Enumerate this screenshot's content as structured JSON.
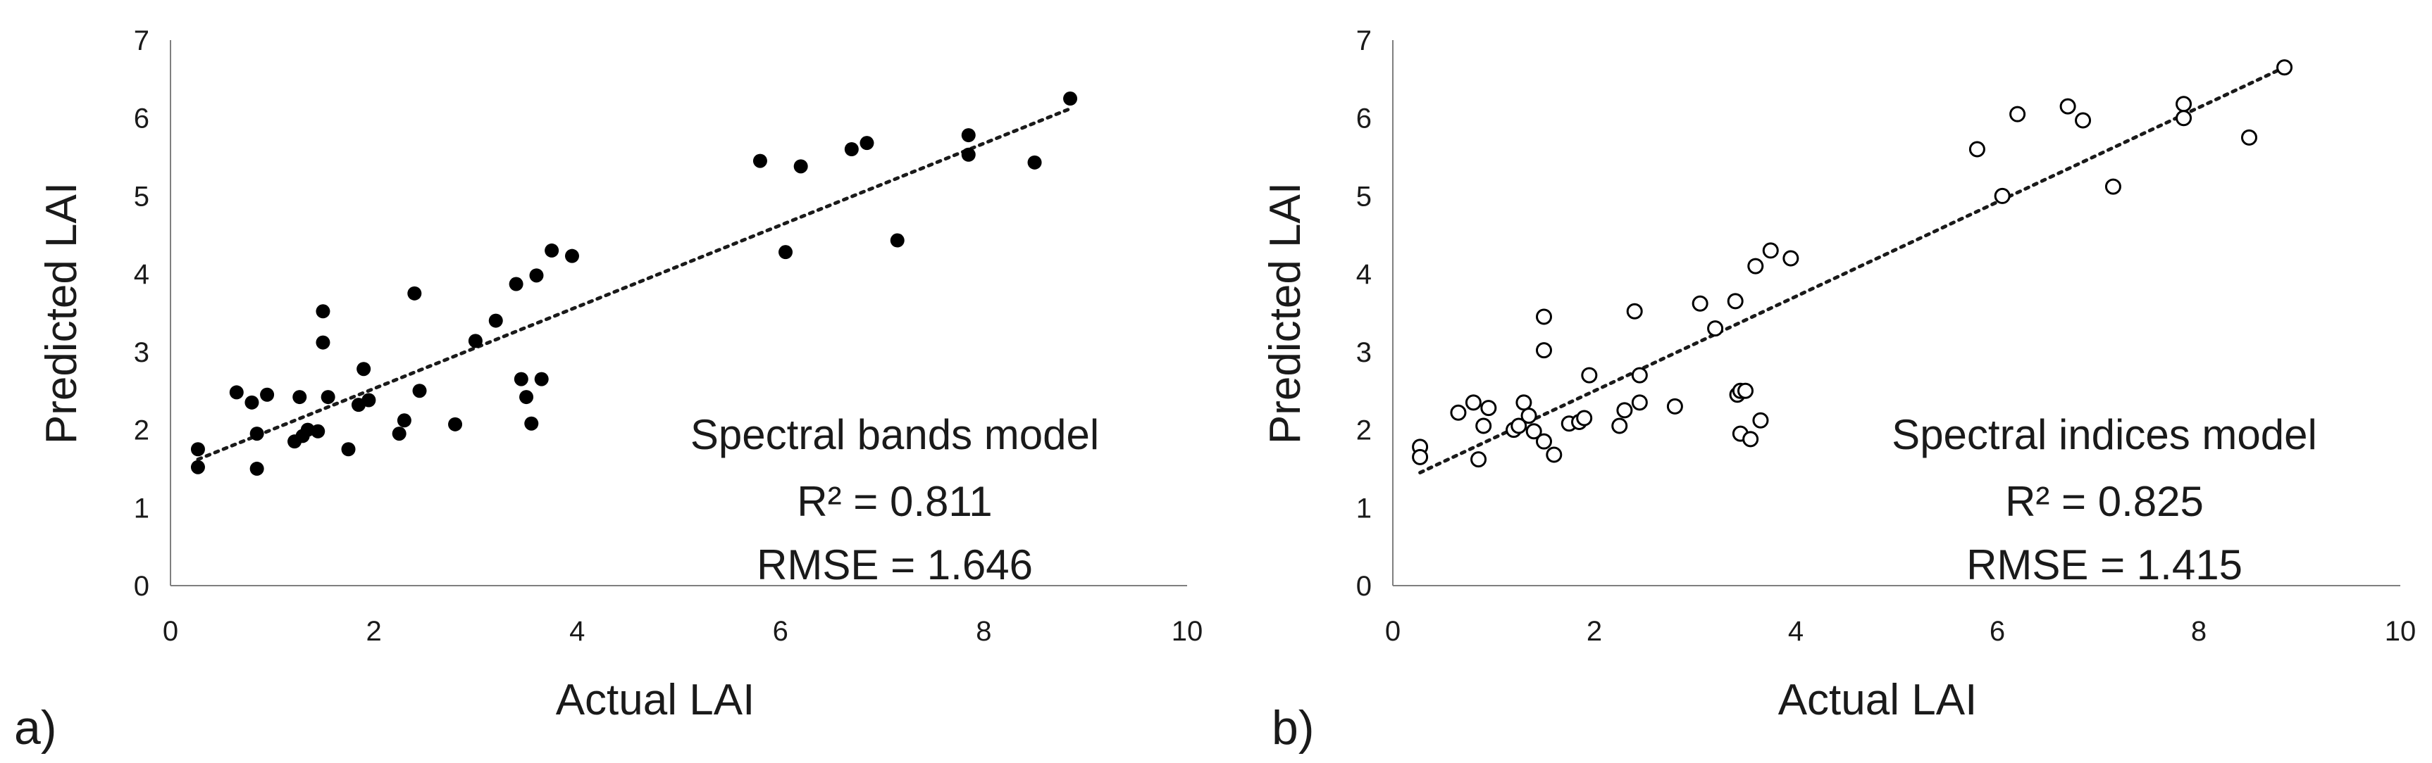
{
  "chart_data": [
    {
      "type": "scatter",
      "panel_label": "a)",
      "xlabel": "Actual LAI",
      "ylabel": "Predicted LAI",
      "xlim": [
        0,
        10
      ],
      "ylim": [
        0,
        7
      ],
      "xticks": [
        "0",
        "2",
        "4",
        "6",
        "8",
        "10"
      ],
      "yticks": [
        "0",
        "1",
        "2",
        "3",
        "4",
        "5",
        "6",
        "7"
      ],
      "grid": false,
      "marker": "filled",
      "annotation": {
        "model": "Spectral bands model",
        "r2": "R² = 0.811",
        "rmse": "RMSE = 1.646"
      },
      "trendline": {
        "x": [
          0.27,
          8.85
        ],
        "y": [
          1.62,
          6.12
        ]
      },
      "points": [
        [
          0.27,
          1.75
        ],
        [
          0.27,
          1.52
        ],
        [
          0.65,
          2.48
        ],
        [
          0.8,
          2.35
        ],
        [
          0.85,
          1.95
        ],
        [
          0.85,
          1.5
        ],
        [
          0.95,
          2.45
        ],
        [
          1.22,
          1.85
        ],
        [
          1.27,
          2.42
        ],
        [
          1.3,
          1.92
        ],
        [
          1.35,
          2.0
        ],
        [
          1.45,
          1.98
        ],
        [
          1.5,
          3.52
        ],
        [
          1.5,
          3.12
        ],
        [
          1.55,
          2.42
        ],
        [
          1.75,
          1.75
        ],
        [
          1.85,
          2.32
        ],
        [
          1.9,
          2.78
        ],
        [
          1.95,
          2.38
        ],
        [
          2.25,
          1.95
        ],
        [
          2.3,
          2.12
        ],
        [
          2.4,
          3.75
        ],
        [
          2.45,
          2.5
        ],
        [
          2.8,
          2.07
        ],
        [
          3.0,
          3.14
        ],
        [
          3.2,
          3.4
        ],
        [
          3.4,
          3.87
        ],
        [
          3.45,
          2.65
        ],
        [
          3.5,
          2.42
        ],
        [
          3.55,
          2.08
        ],
        [
          3.6,
          3.98
        ],
        [
          3.65,
          2.65
        ],
        [
          3.75,
          4.3
        ],
        [
          3.95,
          4.23
        ],
        [
          5.8,
          5.45
        ],
        [
          6.05,
          4.28
        ],
        [
          6.2,
          5.38
        ],
        [
          6.7,
          5.6
        ],
        [
          6.85,
          5.68
        ],
        [
          7.15,
          4.43
        ],
        [
          7.85,
          5.78
        ],
        [
          7.85,
          5.53
        ],
        [
          8.5,
          5.43
        ],
        [
          8.85,
          6.25
        ]
      ]
    },
    {
      "type": "scatter",
      "panel_label": "b)",
      "xlabel": "Actual LAI",
      "ylabel": "Predicted LAI",
      "xlim": [
        0,
        10
      ],
      "ylim": [
        0,
        7
      ],
      "xticks": [
        "0",
        "2",
        "4",
        "6",
        "8",
        "10"
      ],
      "yticks": [
        "0",
        "1",
        "2",
        "3",
        "4",
        "5",
        "6",
        "7"
      ],
      "grid": false,
      "marker": "open",
      "annotation": {
        "model": "Spectral indices model",
        "r2": "R² = 0.825",
        "rmse": "RMSE = 1.415"
      },
      "trendline": {
        "x": [
          0.27,
          8.85
        ],
        "y": [
          1.45,
          6.65
        ]
      },
      "points": [
        [
          0.27,
          1.78
        ],
        [
          0.27,
          1.65
        ],
        [
          0.65,
          2.22
        ],
        [
          0.8,
          2.35
        ],
        [
          0.85,
          1.62
        ],
        [
          0.9,
          2.05
        ],
        [
          0.95,
          2.28
        ],
        [
          1.2,
          2.0
        ],
        [
          1.25,
          2.05
        ],
        [
          1.3,
          2.35
        ],
        [
          1.35,
          2.18
        ],
        [
          1.4,
          1.98
        ],
        [
          1.5,
          3.45
        ],
        [
          1.5,
          3.02
        ],
        [
          1.5,
          1.85
        ],
        [
          1.6,
          1.68
        ],
        [
          1.75,
          2.08
        ],
        [
          1.85,
          2.1
        ],
        [
          1.9,
          2.15
        ],
        [
          1.95,
          2.7
        ],
        [
          2.25,
          2.05
        ],
        [
          2.3,
          2.25
        ],
        [
          2.4,
          3.52
        ],
        [
          2.45,
          2.35
        ],
        [
          2.45,
          2.7
        ],
        [
          2.8,
          2.3
        ],
        [
          3.05,
          3.62
        ],
        [
          3.2,
          3.3
        ],
        [
          3.4,
          3.65
        ],
        [
          3.42,
          2.45
        ],
        [
          3.45,
          2.5
        ],
        [
          3.45,
          1.95
        ],
        [
          3.5,
          2.5
        ],
        [
          3.55,
          1.88
        ],
        [
          3.6,
          4.1
        ],
        [
          3.65,
          2.12
        ],
        [
          3.75,
          4.3
        ],
        [
          3.95,
          4.2
        ],
        [
          5.8,
          5.6
        ],
        [
          6.05,
          5.0
        ],
        [
          6.2,
          6.05
        ],
        [
          6.7,
          6.15
        ],
        [
          6.85,
          5.97
        ],
        [
          7.15,
          5.12
        ],
        [
          7.85,
          6.18
        ],
        [
          7.85,
          6.0
        ],
        [
          8.5,
          5.75
        ],
        [
          8.85,
          6.65
        ]
      ]
    }
  ]
}
